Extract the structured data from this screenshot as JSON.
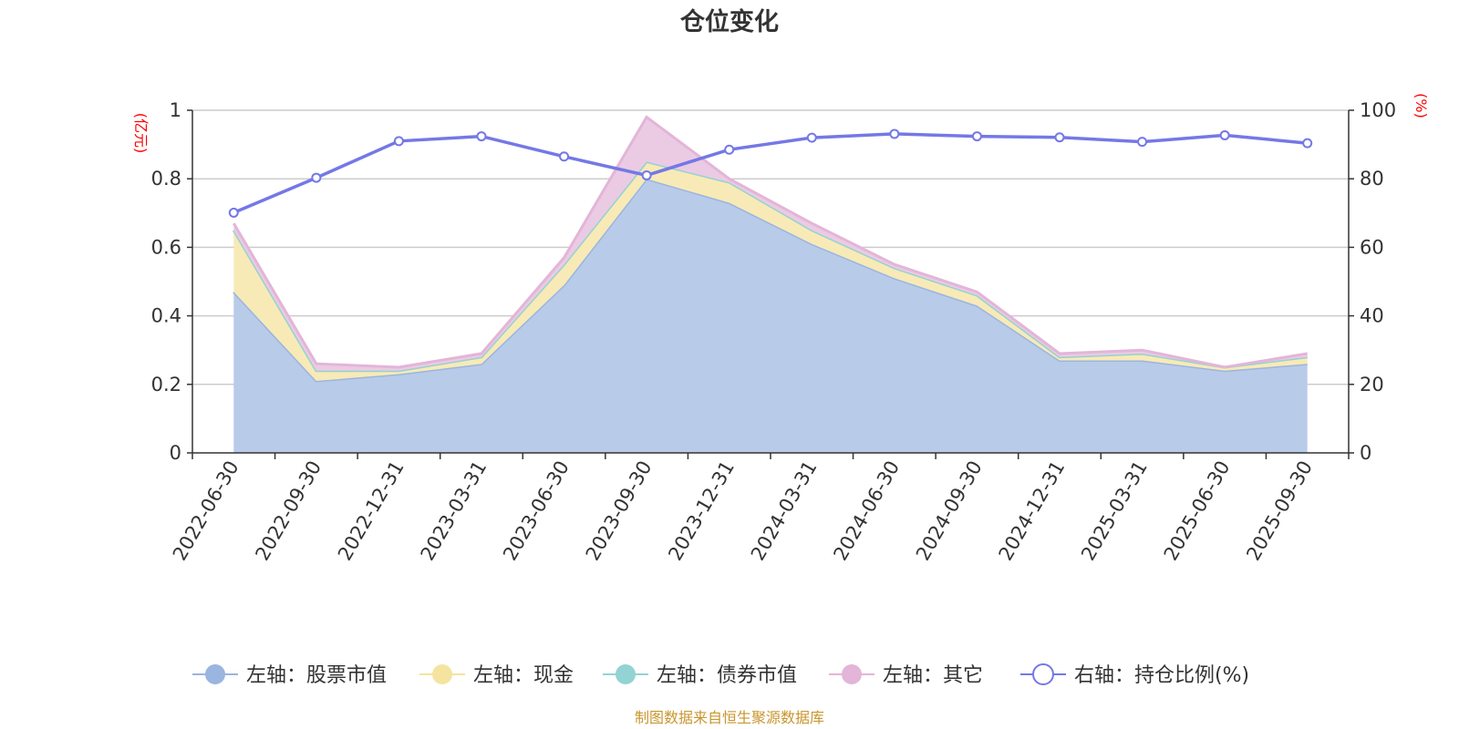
{
  "chart_data": {
    "type": "area",
    "title": "仓位变化",
    "left_axis_unit": "(亿元)",
    "right_axis_unit": "(%)",
    "categories": [
      "2022-06-30",
      "2022-09-30",
      "2022-12-31",
      "2023-03-31",
      "2023-06-30",
      "2023-09-30",
      "2023-12-31",
      "2024-03-31",
      "2024-06-30",
      "2024-09-30",
      "2024-12-31",
      "2025-03-31",
      "2025-06-30",
      "2025-09-30"
    ],
    "left_ylim": [
      0,
      1
    ],
    "left_ticks": [
      "0",
      "0.2",
      "0.4",
      "0.6",
      "0.8",
      "1"
    ],
    "right_ylim": [
      0,
      100
    ],
    "right_ticks": [
      "0",
      "20",
      "40",
      "60",
      "80",
      "100"
    ],
    "series": [
      {
        "name": "左轴：股票市值",
        "axis": "left",
        "stacked": true,
        "color": "#9ab5e0",
        "fill": "#b8cbe9",
        "values": [
          0.47,
          0.21,
          0.23,
          0.26,
          0.49,
          0.8,
          0.73,
          0.61,
          0.51,
          0.43,
          0.27,
          0.27,
          0.24,
          0.26
        ]
      },
      {
        "name": "左轴：现金",
        "axis": "left",
        "stacked": true,
        "color": "#f5e3a0",
        "fill": "#f8eab6",
        "values": [
          0.18,
          0.03,
          0.01,
          0.02,
          0.06,
          0.05,
          0.06,
          0.04,
          0.03,
          0.03,
          0.01,
          0.02,
          0.01,
          0.02
        ]
      },
      {
        "name": "左轴：债券市值",
        "axis": "left",
        "stacked": true,
        "color": "#93d3d3",
        "fill": "#b4e2e2",
        "values": [
          0,
          0,
          0,
          0,
          0,
          0,
          0,
          0,
          0,
          0,
          0,
          0,
          0,
          0
        ]
      },
      {
        "name": "左轴：其它",
        "axis": "left",
        "stacked": true,
        "color": "#e3b5d8",
        "fill": "#ebcbe3",
        "values": [
          0.02,
          0.02,
          0.01,
          0.01,
          0.02,
          0.13,
          0.01,
          0.02,
          0.01,
          0.01,
          0.01,
          0.01,
          0.0,
          0.01
        ]
      },
      {
        "name": "右轴：持仓比例(%)",
        "axis": "right",
        "stacked": false,
        "color": "#7478e6",
        "values": [
          70.1,
          80.3,
          91.0,
          92.4,
          86.5,
          81.0,
          88.5,
          92.0,
          93.1,
          92.4,
          92.1,
          90.8,
          92.7,
          90.4
        ]
      }
    ],
    "legend_position": "bottom",
    "source": "制图数据来自恒生聚源数据库"
  }
}
